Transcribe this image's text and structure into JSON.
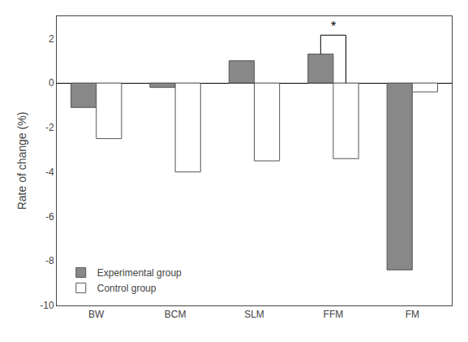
{
  "chart_data": {
    "type": "bar",
    "categories": [
      "BW",
      "BCM",
      "SLM",
      "FFM",
      "FM"
    ],
    "series": [
      {
        "name": "Experimental group",
        "color": "#888888",
        "values": [
          -1.1,
          -0.2,
          1.0,
          1.3,
          -8.4
        ]
      },
      {
        "name": "Control group",
        "color": "#ffffff",
        "values": [
          -2.5,
          -4.0,
          -3.5,
          -3.4,
          -0.4
        ]
      }
    ],
    "ylabel": "Rate of change (%)",
    "ylim": [
      -10,
      3.0
    ],
    "yticks": [
      -10,
      -8,
      -6,
      -4,
      -2,
      0,
      2
    ],
    "grid": false,
    "legend": "lower left",
    "annotations": [
      {
        "text": "*",
        "category": "FFM",
        "y": 2.15
      }
    ]
  }
}
